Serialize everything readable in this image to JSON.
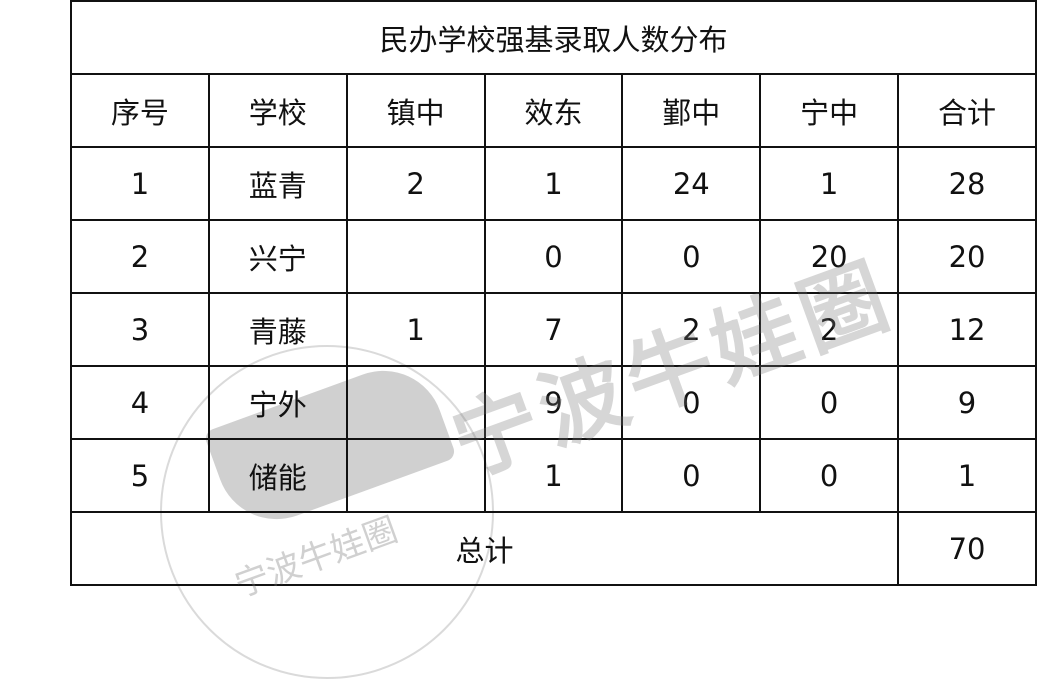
{
  "title": "民办学校强基录取人数分布",
  "headers": [
    "序号",
    "学校",
    "镇中",
    "效东",
    "鄞中",
    "宁中",
    "合计"
  ],
  "rows": [
    [
      "1",
      "蓝青",
      "2",
      "1",
      "24",
      "1",
      "28"
    ],
    [
      "2",
      "兴宁",
      "",
      "0",
      "0",
      "20",
      "20"
    ],
    [
      "3",
      "青藤",
      "1",
      "7",
      "2",
      "2",
      "12"
    ],
    [
      "4",
      "宁外",
      "",
      "9",
      "0",
      "0",
      "9"
    ],
    [
      "5",
      "储能",
      "",
      "1",
      "0",
      "0",
      "1"
    ]
  ],
  "total": {
    "label": "总计",
    "value": "70"
  },
  "watermark": {
    "text": "宁波牛娃圈",
    "color": "#888888"
  }
}
